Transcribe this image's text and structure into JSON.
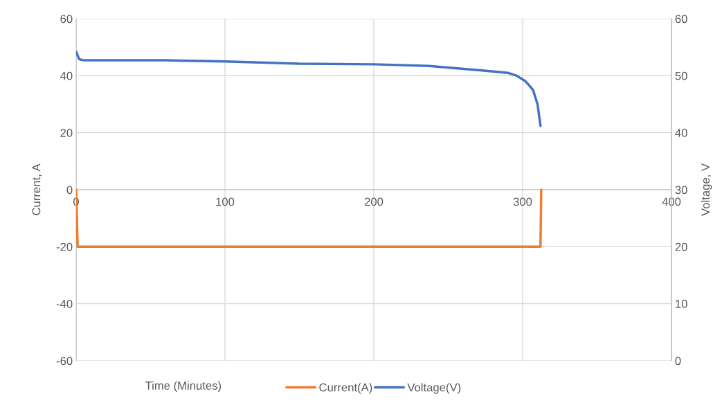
{
  "chart_data": {
    "type": "line",
    "xlabel": "Time (Minutes)",
    "ylabel": "Current, A",
    "y2label": "Voltage, V",
    "xlim": [
      0,
      400
    ],
    "xticks": [
      0,
      100,
      200,
      300,
      400
    ],
    "ylim": [
      -60,
      60
    ],
    "yticks": [
      -60,
      -40,
      -20,
      0,
      20,
      40,
      60
    ],
    "y2lim": [
      0,
      60
    ],
    "y2ticks": [
      0,
      10,
      20,
      30,
      40,
      50,
      60
    ],
    "grid": true,
    "legend": "bottom",
    "marker": "none",
    "line_style": "solid",
    "series": [
      {
        "name": "Current(A)",
        "color": "#ed7d31",
        "x": [
          0,
          1,
          312,
          312.5
        ],
        "values": [
          0,
          -20,
          -20,
          0
        ]
      },
      {
        "name": "Voltage(V)",
        "color": "#4472c4",
        "axis": "y2",
        "x": [
          0,
          2,
          5,
          60,
          100,
          150,
          200,
          237,
          274,
          290,
          296,
          302,
          307,
          310,
          312
        ],
        "values": [
          54.2,
          52.9,
          52.7,
          52.7,
          52.5,
          52.1,
          52.0,
          51.7,
          50.9,
          50.5,
          50.0,
          49.0,
          47.5,
          45.0,
          41.2
        ]
      }
    ]
  }
}
